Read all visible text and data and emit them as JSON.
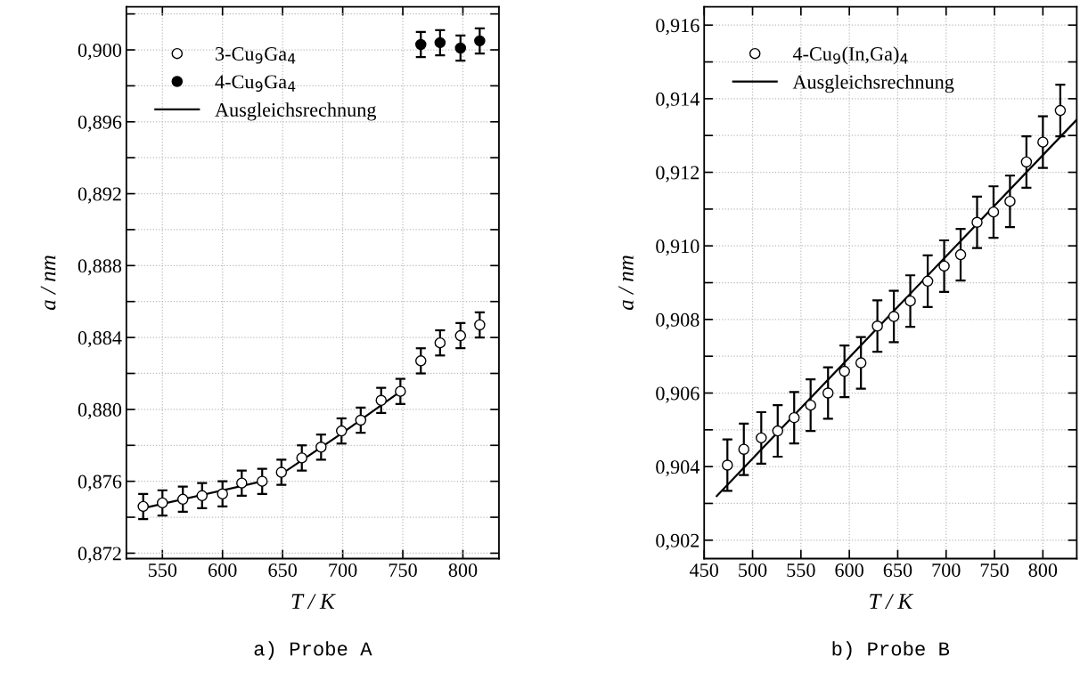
{
  "chart_data": [
    {
      "type": "scatter",
      "xlabel": "T / K",
      "ylabel": "a / nm",
      "annotations": [
        "a) Probe A"
      ],
      "legend": "top left",
      "grid": true,
      "xlim": [
        520,
        830
      ],
      "xticks": [
        550,
        600,
        650,
        700,
        750,
        800
      ],
      "ylim": [
        0.8717,
        0.9024
      ],
      "yticks": [
        {
          "value": 0.872,
          "label": "0,872"
        },
        {
          "value": 0.874,
          "label": null
        },
        {
          "value": 0.876,
          "label": "0,876"
        },
        {
          "value": 0.878,
          "label": null
        },
        {
          "value": 0.88,
          "label": "0,880"
        },
        {
          "value": 0.882,
          "label": null
        },
        {
          "value": 0.884,
          "label": "0,884"
        },
        {
          "value": 0.886,
          "label": null
        },
        {
          "value": 0.888,
          "label": "0,888"
        },
        {
          "value": 0.89,
          "label": null
        },
        {
          "value": 0.892,
          "label": "0,892"
        },
        {
          "value": 0.894,
          "label": null
        },
        {
          "value": 0.896,
          "label": "0,896"
        },
        {
          "value": 0.898,
          "label": null
        },
        {
          "value": 0.9,
          "label": "0,900"
        },
        {
          "value": 0.902,
          "label": null
        }
      ],
      "series": [
        {
          "name": "3-Cu$_{9}$Ga$_{4}$",
          "marker": "circle",
          "color": "#ffffff",
          "x": [
            534,
            550,
            567,
            583,
            600,
            616,
            633,
            649,
            666,
            682,
            699,
            715,
            732,
            748,
            765,
            781,
            798,
            814
          ],
          "values": [
            0.8746,
            0.8748,
            0.875,
            0.8752,
            0.8753,
            0.8759,
            0.876,
            0.8765,
            0.8773,
            0.8779,
            0.8788,
            0.8794,
            0.8805,
            0.881,
            0.8827,
            0.8837,
            0.8841,
            0.8847
          ],
          "errors": [
            0.0007,
            0.0007,
            0.0007,
            0.0007,
            0.0007,
            0.0007,
            0.0007,
            0.0007,
            0.0007,
            0.0007,
            0.0007,
            0.0007,
            0.0007,
            0.0007,
            0.0007,
            0.0007,
            0.0007,
            0.0007
          ]
        },
        {
          "name": "4-Cu$_{9}$Ga$_{4}$",
          "marker": "circle",
          "color": "#000000",
          "x": [
            765,
            781,
            798,
            814
          ],
          "values": [
            0.9003,
            0.9004,
            0.9001,
            0.9005
          ],
          "errors": [
            0.0007,
            0.0007,
            0.0007,
            0.0007
          ]
        },
        {
          "name": "Ausgleichsrechnung",
          "type": "line",
          "color": "#000000",
          "x": [
            534,
            633,
            641,
            649,
            700,
            748
          ],
          "values": [
            0.8745,
            0.876,
            null,
            0.8764,
            0.8787,
            0.881
          ]
        }
      ]
    },
    {
      "type": "scatter",
      "xlabel": "T / K",
      "ylabel": "a / nm",
      "annotations": [
        "b) Probe B"
      ],
      "legend": "top left",
      "grid": true,
      "xlim": [
        450,
        835
      ],
      "xticks": [
        450,
        500,
        550,
        600,
        650,
        700,
        750,
        800
      ],
      "ylim": [
        0.9015,
        0.9165
      ],
      "yticks": [
        {
          "value": 0.902,
          "label": "0,902"
        },
        {
          "value": 0.903,
          "label": null
        },
        {
          "value": 0.904,
          "label": "0,904"
        },
        {
          "value": 0.905,
          "label": null
        },
        {
          "value": 0.906,
          "label": "0,906"
        },
        {
          "value": 0.907,
          "label": null
        },
        {
          "value": 0.908,
          "label": "0,908"
        },
        {
          "value": 0.909,
          "label": null
        },
        {
          "value": 0.91,
          "label": "0,910"
        },
        {
          "value": 0.911,
          "label": null
        },
        {
          "value": 0.912,
          "label": "0,912"
        },
        {
          "value": 0.913,
          "label": null
        },
        {
          "value": 0.914,
          "label": "0,914"
        },
        {
          "value": 0.915,
          "label": null
        },
        {
          "value": 0.916,
          "label": "0,916"
        }
      ],
      "series": [
        {
          "name": "4-Cu$_{9}$(In,Ga)$_{4}$",
          "marker": "circle",
          "color": "#ffffff",
          "x": [
            474,
            491,
            509,
            526,
            543,
            560,
            578,
            595,
            612,
            629,
            646,
            663,
            681,
            698,
            715,
            732,
            749,
            766,
            783,
            800,
            818
          ],
          "values": [
            0.90404,
            0.90447,
            0.90478,
            0.90497,
            0.90533,
            0.90567,
            0.906,
            0.90659,
            0.90682,
            0.90782,
            0.90808,
            0.9085,
            0.90904,
            0.90945,
            0.90976,
            0.91064,
            0.91092,
            0.91121,
            0.91228,
            0.91282,
            0.91368
          ],
          "errors": [
            0.0007,
            0.0007,
            0.0007,
            0.0007,
            0.0007,
            0.0007,
            0.0007,
            0.0007,
            0.0007,
            0.0007,
            0.0007,
            0.0007,
            0.0007,
            0.0007,
            0.0007,
            0.0007,
            0.0007,
            0.0007,
            0.0007,
            0.0007,
            0.0007
          ]
        },
        {
          "name": "Ausgleichsrechnung",
          "type": "line",
          "color": "#000000",
          "x": [
            463,
            835
          ],
          "values": [
            0.9032,
            0.91343
          ]
        }
      ]
    }
  ]
}
